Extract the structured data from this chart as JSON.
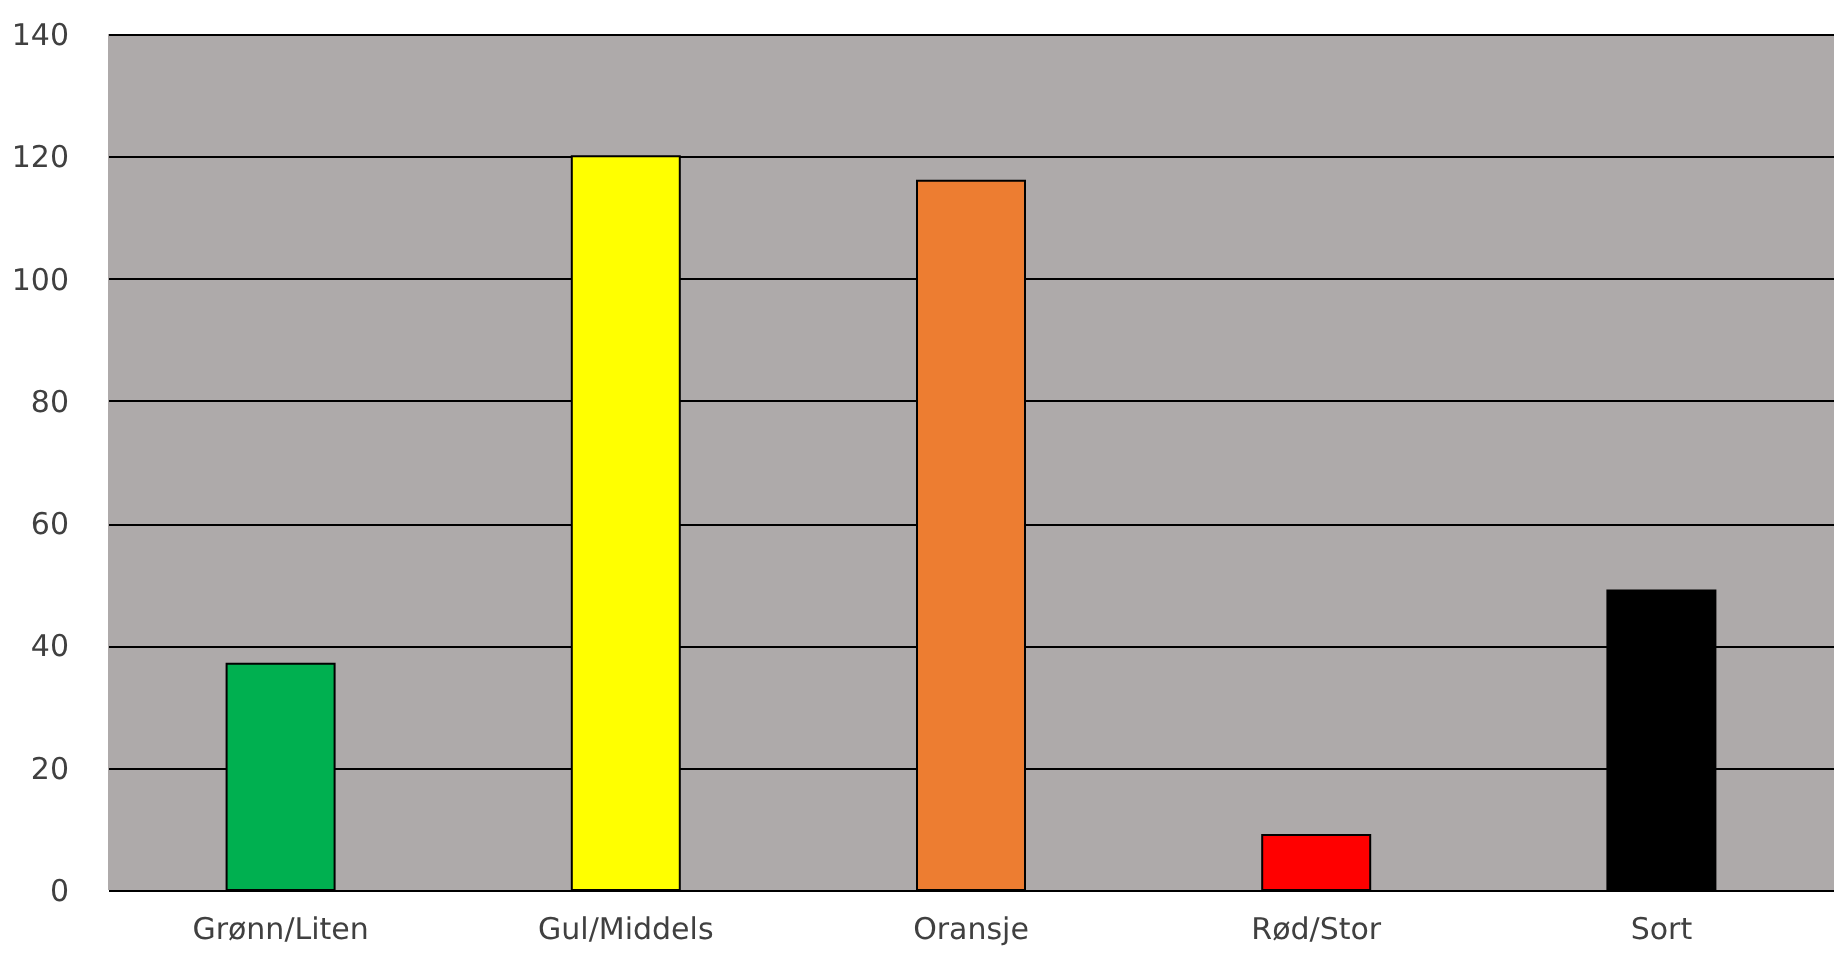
{
  "chart_data": {
    "type": "bar",
    "categories": [
      "Grønn/Liten",
      "Gul/Middels",
      "Oransje",
      "Rød/Stor",
      "Sort"
    ],
    "values": [
      37,
      120,
      116,
      9,
      49
    ],
    "colors": [
      "#00b050",
      "#ffff00",
      "#ed7d31",
      "#ff0000",
      "#000000"
    ],
    "ylim": [
      0,
      140
    ],
    "yticks": [
      0,
      20,
      40,
      60,
      80,
      100,
      120,
      140
    ],
    "grid": "y"
  }
}
